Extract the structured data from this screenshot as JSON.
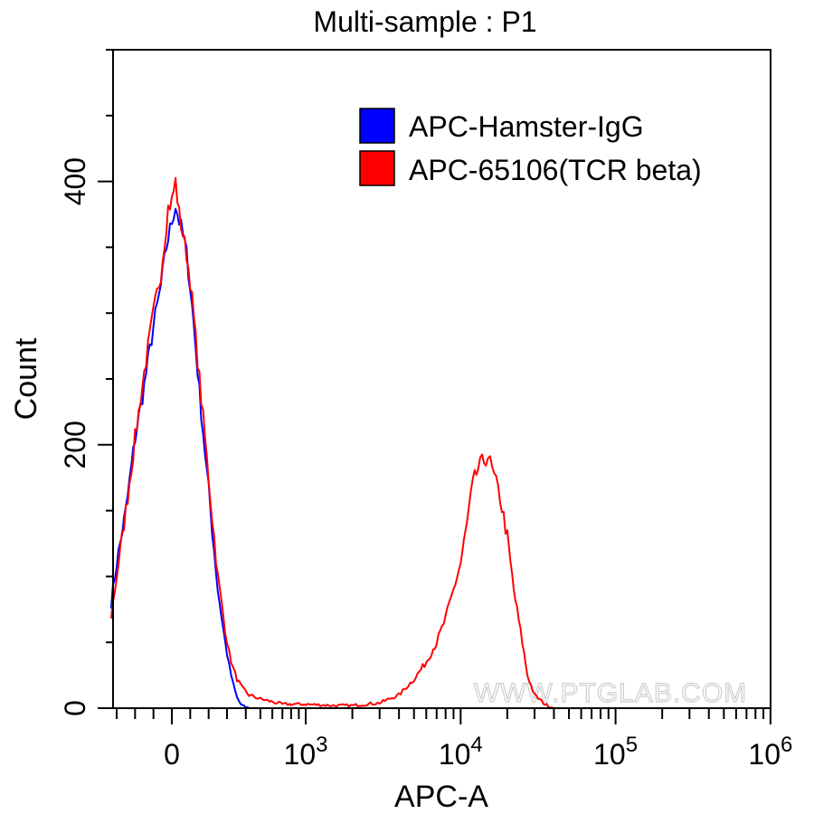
{
  "chart_data": {
    "type": "histogram",
    "title": "Multi-sample : P1",
    "xlabel": "APC-A",
    "ylabel": "Count",
    "x_scale": "biexponential",
    "ylim": [
      0,
      500
    ],
    "x_ticks": [
      {
        "base": "0",
        "exp": ""
      },
      {
        "base": "10",
        "exp": "3"
      },
      {
        "base": "10",
        "exp": "4"
      },
      {
        "base": "10",
        "exp": "5"
      },
      {
        "base": "10",
        "exp": "6"
      }
    ],
    "y_ticks": [
      "0",
      "200",
      "400"
    ],
    "legend_position": "top-right",
    "watermark": "WWW.PTGLAB.COM",
    "series": [
      {
        "name": "APC-Hamster-IgG",
        "color": "#0000ff",
        "points": [
          [
            -330,
            80
          ],
          [
            -300,
            110
          ],
          [
            -250,
            150
          ],
          [
            -200,
            205
          ],
          [
            -150,
            245
          ],
          [
            -100,
            290
          ],
          [
            -60,
            320
          ],
          [
            -30,
            350
          ],
          [
            0,
            370
          ],
          [
            20,
            382
          ],
          [
            40,
            370
          ],
          [
            60,
            360
          ],
          [
            80,
            345
          ],
          [
            100,
            320
          ],
          [
            120,
            290
          ],
          [
            150,
            240
          ],
          [
            170,
            210
          ],
          [
            190,
            180
          ],
          [
            210,
            150
          ],
          [
            230,
            120
          ],
          [
            250,
            90
          ],
          [
            270,
            70
          ],
          [
            290,
            50
          ],
          [
            310,
            32
          ],
          [
            330,
            18
          ],
          [
            350,
            8
          ],
          [
            370,
            3
          ],
          [
            390,
            1
          ],
          [
            420,
            0
          ],
          [
            1000,
            0
          ],
          [
            100000,
            0
          ]
        ]
      },
      {
        "name": "APC-65106(TCR beta)",
        "color": "#ff0000",
        "points": [
          [
            -330,
            70
          ],
          [
            -300,
            100
          ],
          [
            -250,
            150
          ],
          [
            -200,
            205
          ],
          [
            -150,
            255
          ],
          [
            -100,
            300
          ],
          [
            -60,
            330
          ],
          [
            -20,
            380
          ],
          [
            0,
            385
          ],
          [
            20,
            400
          ],
          [
            40,
            375
          ],
          [
            60,
            360
          ],
          [
            80,
            345
          ],
          [
            100,
            325
          ],
          [
            120,
            295
          ],
          [
            150,
            250
          ],
          [
            170,
            220
          ],
          [
            190,
            190
          ],
          [
            210,
            160
          ],
          [
            230,
            130
          ],
          [
            250,
            100
          ],
          [
            270,
            80
          ],
          [
            290,
            60
          ],
          [
            310,
            42
          ],
          [
            330,
            30
          ],
          [
            350,
            22
          ],
          [
            380,
            15
          ],
          [
            420,
            10
          ],
          [
            500,
            7
          ],
          [
            700,
            3
          ],
          [
            1000,
            3
          ],
          [
            1500,
            2
          ],
          [
            2000,
            2
          ],
          [
            3000,
            4
          ],
          [
            4000,
            10
          ],
          [
            5000,
            22
          ],
          [
            6000,
            35
          ],
          [
            7000,
            50
          ],
          [
            8000,
            68
          ],
          [
            9000,
            90
          ],
          [
            10000,
            110
          ],
          [
            11000,
            140
          ],
          [
            12000,
            170
          ],
          [
            13000,
            182
          ],
          [
            15000,
            192
          ],
          [
            16000,
            180
          ],
          [
            18000,
            160
          ],
          [
            20000,
            130
          ],
          [
            22000,
            90
          ],
          [
            25000,
            50
          ],
          [
            27000,
            25
          ],
          [
            30000,
            10
          ],
          [
            35000,
            3
          ],
          [
            40000,
            0
          ],
          [
            100000,
            0
          ]
        ]
      }
    ]
  }
}
